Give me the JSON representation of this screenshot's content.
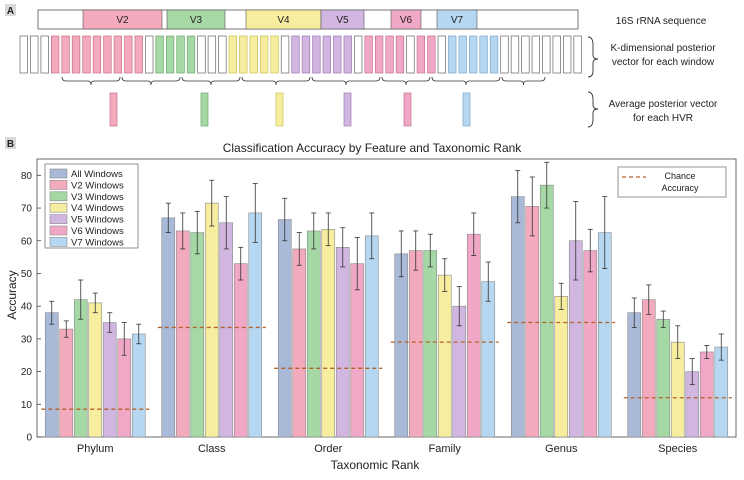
{
  "panel_a": {
    "label": "A",
    "regions": [
      "V2",
      "V3",
      "V4",
      "V5",
      "V6",
      "V7"
    ],
    "row_labels": {
      "sequence": "16S rRNA sequence",
      "windows_1": "K-dimensional posterior",
      "windows_2": "vector for each window",
      "average_1": "Average posterior vector",
      "average_2": "for each HVR"
    }
  },
  "panel_b": {
    "label": "B"
  },
  "colors": {
    "All Windows": "#a9b9d8",
    "V2 Windows": "#f4aabd",
    "V3 Windows": "#a6d8a6",
    "V4 Windows": "#f6ee9e",
    "V5 Windows": "#d0b6e1",
    "V6 Windows": "#f1a8c7",
    "V7 Windows": "#b6d7f1",
    "chance": "#b5622a"
  },
  "chart_data": {
    "type": "bar",
    "title": "Classification Accuracy by Feature and Taxonomic Rank",
    "xlabel": "Taxonomic Rank",
    "ylabel": "Accuracy",
    "ylim": [
      0,
      85
    ],
    "yticks": [
      0,
      10,
      20,
      30,
      40,
      50,
      60,
      70,
      80
    ],
    "categories": [
      "Phylum",
      "Class",
      "Order",
      "Family",
      "Genus",
      "Species"
    ],
    "legend_position": "top-left",
    "series": [
      {
        "name": "All Windows",
        "values": [
          38,
          67,
          66.5,
          56,
          73.5,
          38
        ],
        "errors": [
          3.5,
          4.5,
          6.5,
          7,
          8,
          4.5
        ]
      },
      {
        "name": "V2 Windows",
        "values": [
          33,
          63,
          57.5,
          57,
          70.5,
          42
        ],
        "errors": [
          2.5,
          5.5,
          5,
          6,
          9,
          4.5
        ]
      },
      {
        "name": "V3 Windows",
        "values": [
          42,
          62.5,
          63,
          57,
          77,
          36
        ],
        "errors": [
          6,
          6.5,
          5.5,
          5,
          7,
          2.5
        ]
      },
      {
        "name": "V4 Windows",
        "values": [
          41,
          71.5,
          63.5,
          49.5,
          43,
          29
        ],
        "errors": [
          3,
          7,
          5,
          5,
          4,
          5
        ]
      },
      {
        "name": "V5 Windows",
        "values": [
          35,
          65.5,
          58,
          40,
          60,
          20
        ],
        "errors": [
          3,
          8,
          6,
          6,
          12,
          4
        ]
      },
      {
        "name": "V6 Windows",
        "values": [
          30,
          53,
          53,
          62,
          57,
          26
        ],
        "errors": [
          5,
          5,
          8,
          6.5,
          6.5,
          2
        ]
      },
      {
        "name": "V7 Windows",
        "values": [
          31.5,
          68.5,
          61.5,
          47.5,
          62.5,
          27.5
        ],
        "errors": [
          3,
          9,
          7,
          6,
          11,
          4
        ]
      }
    ],
    "chance": {
      "label_1": "Chance",
      "label_2": "Accuracy",
      "values": [
        8.5,
        33.5,
        21,
        29,
        35,
        12
      ]
    }
  }
}
